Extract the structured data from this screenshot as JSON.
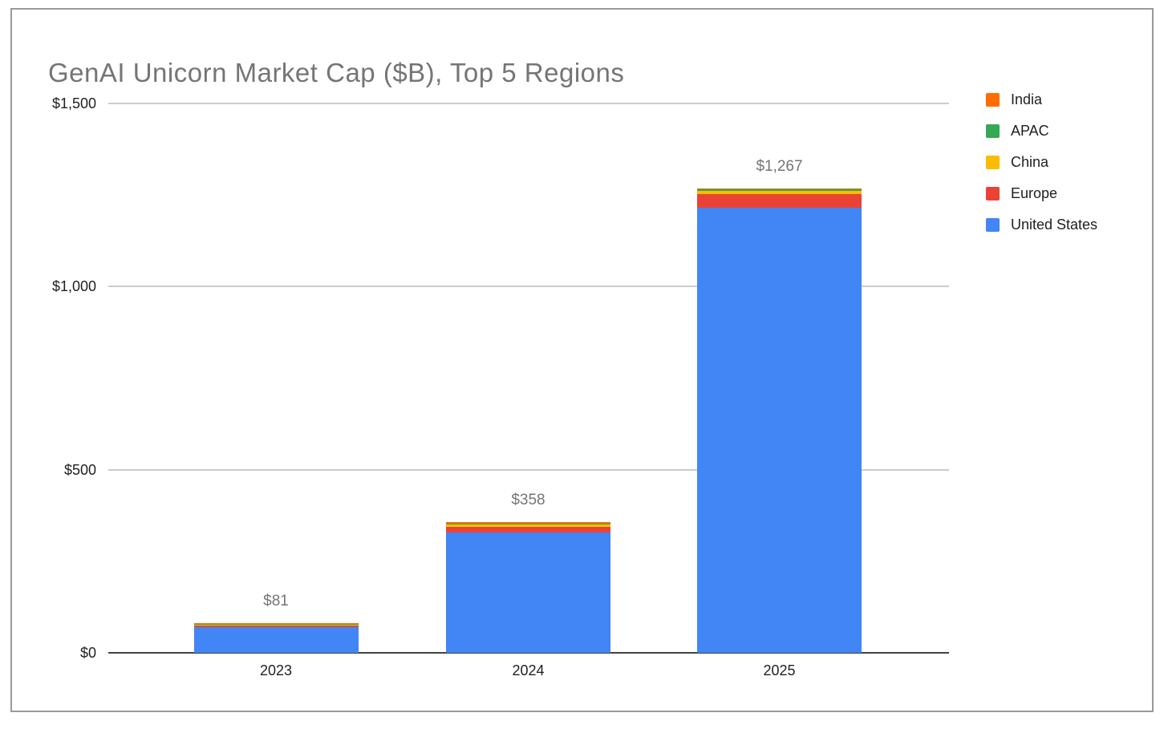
{
  "frame": {
    "border_color": "#9a9a9a",
    "background": "#ffffff"
  },
  "chart_data": {
    "type": "bar",
    "stacked": true,
    "title": "GenAI Unicorn Market Cap ($B), Top 5 Regions",
    "title_color": "#757575",
    "categories": [
      "2023",
      "2024",
      "2025"
    ],
    "series": [
      {
        "name": "United States",
        "color": "#4285f4",
        "values": [
          70,
          328,
          1216
        ]
      },
      {
        "name": "Europe",
        "color": "#ea4335",
        "values": [
          5,
          15,
          36
        ]
      },
      {
        "name": "China",
        "color": "#fbbc04",
        "values": [
          2,
          8,
          9
        ]
      },
      {
        "name": "APAC",
        "color": "#34a853",
        "values": [
          1,
          1,
          4
        ]
      },
      {
        "name": "India",
        "color": "#ff6d01",
        "values": [
          3,
          6,
          2
        ]
      }
    ],
    "totals": [
      81,
      358,
      1267
    ],
    "total_labels": [
      "$81",
      "$358",
      "$1,267"
    ],
    "total_label_color": "#757575",
    "y_ticks": [
      {
        "label": "$0",
        "value": 0
      },
      {
        "label": "$500",
        "value": 500
      },
      {
        "label": "$1,000",
        "value": 1000
      },
      {
        "label": "$1,500",
        "value": 1500
      }
    ],
    "ylim": [
      0,
      1500
    ],
    "xlabel": "",
    "ylabel": "",
    "grid": true,
    "gridline_color": "#cccccc",
    "axis_line_color": "#424242",
    "tick_label_color": "#1f1f1f",
    "legend": {
      "position": "right",
      "order": [
        "India",
        "APAC",
        "China",
        "Europe",
        "United States"
      ],
      "text_color": "#1f1f1f"
    }
  }
}
